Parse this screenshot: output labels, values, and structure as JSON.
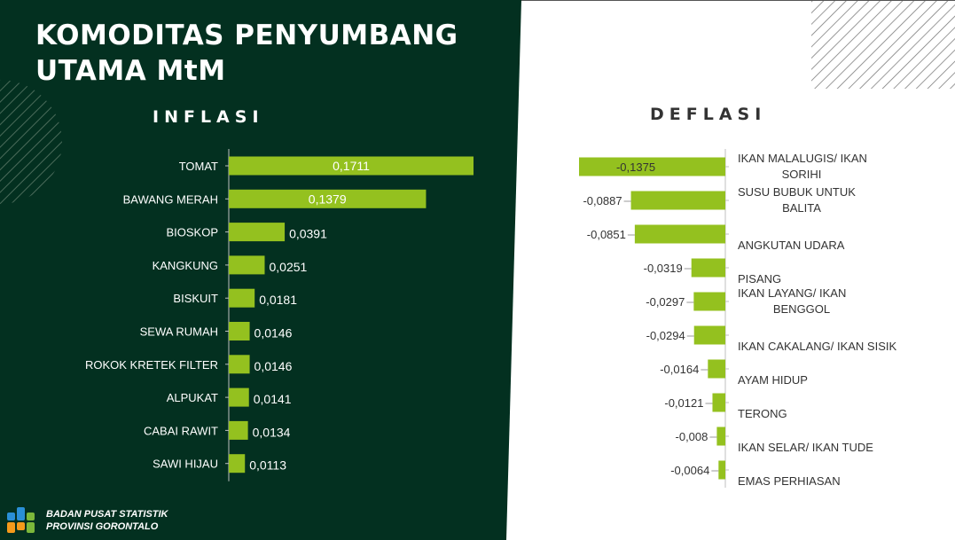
{
  "title_lines": [
    "KOMODITAS PENYUMBANG",
    "UTAMA MtM"
  ],
  "colors": {
    "dark_green": "#033020",
    "bar_green": "#94C11F",
    "text_dark": "#333333"
  },
  "organization": [
    "BADAN PUSAT STATISTIK",
    "PROVINSI GORONTALO"
  ],
  "logo_icon": "bps-logo-icon",
  "chart_data": [
    {
      "type": "bar",
      "orientation": "horizontal",
      "title": "INFLASI",
      "categories": [
        "TOMAT",
        "BAWANG MERAH",
        "BIOSKOP",
        "KANGKUNG",
        "BISKUIT",
        "SEWA RUMAH",
        "ROKOK KRETEK FILTER",
        "ALPUKAT",
        "CABAI RAWIT",
        "SAWI HIJAU"
      ],
      "values": [
        0.1711,
        0.1379,
        0.0391,
        0.0251,
        0.0181,
        0.0146,
        0.0146,
        0.0141,
        0.0134,
        0.0113
      ],
      "value_labels": [
        "0,1711",
        "0,1379",
        "0,0391",
        "0,0251",
        "0,0181",
        "0,0146",
        "0,0146",
        "0,0141",
        "0,0134",
        "0,0113"
      ],
      "grid": false
    },
    {
      "type": "bar",
      "orientation": "horizontal",
      "title": "DEFLASI",
      "categories": [
        [
          "IKAN MALALUGIS/ IKAN",
          "SORIHI"
        ],
        [
          "SUSU BUBUK UNTUK",
          "BALITA"
        ],
        [
          "ANGKUTAN UDARA"
        ],
        [
          "PISANG"
        ],
        [
          "IKAN LAYANG/ IKAN",
          "BENGGOL"
        ],
        [
          "IKAN CAKALANG/ IKAN SISIK"
        ],
        [
          "AYAM HIDUP"
        ],
        [
          "TERONG"
        ],
        [
          "IKAN SELAR/ IKAN TUDE"
        ],
        [
          "EMAS PERHIASAN"
        ]
      ],
      "values": [
        -0.1375,
        -0.0887,
        -0.0851,
        -0.0319,
        -0.0297,
        -0.0294,
        -0.0164,
        -0.0121,
        -0.008,
        -0.0064
      ],
      "value_labels": [
        "-0,1375",
        "-0,0887",
        "-0,0851",
        "-0,0319",
        "-0,0297",
        "-0,0294",
        "-0,0164",
        "-0,0121",
        "-0,008",
        "-0,0064"
      ],
      "grid": false
    }
  ]
}
